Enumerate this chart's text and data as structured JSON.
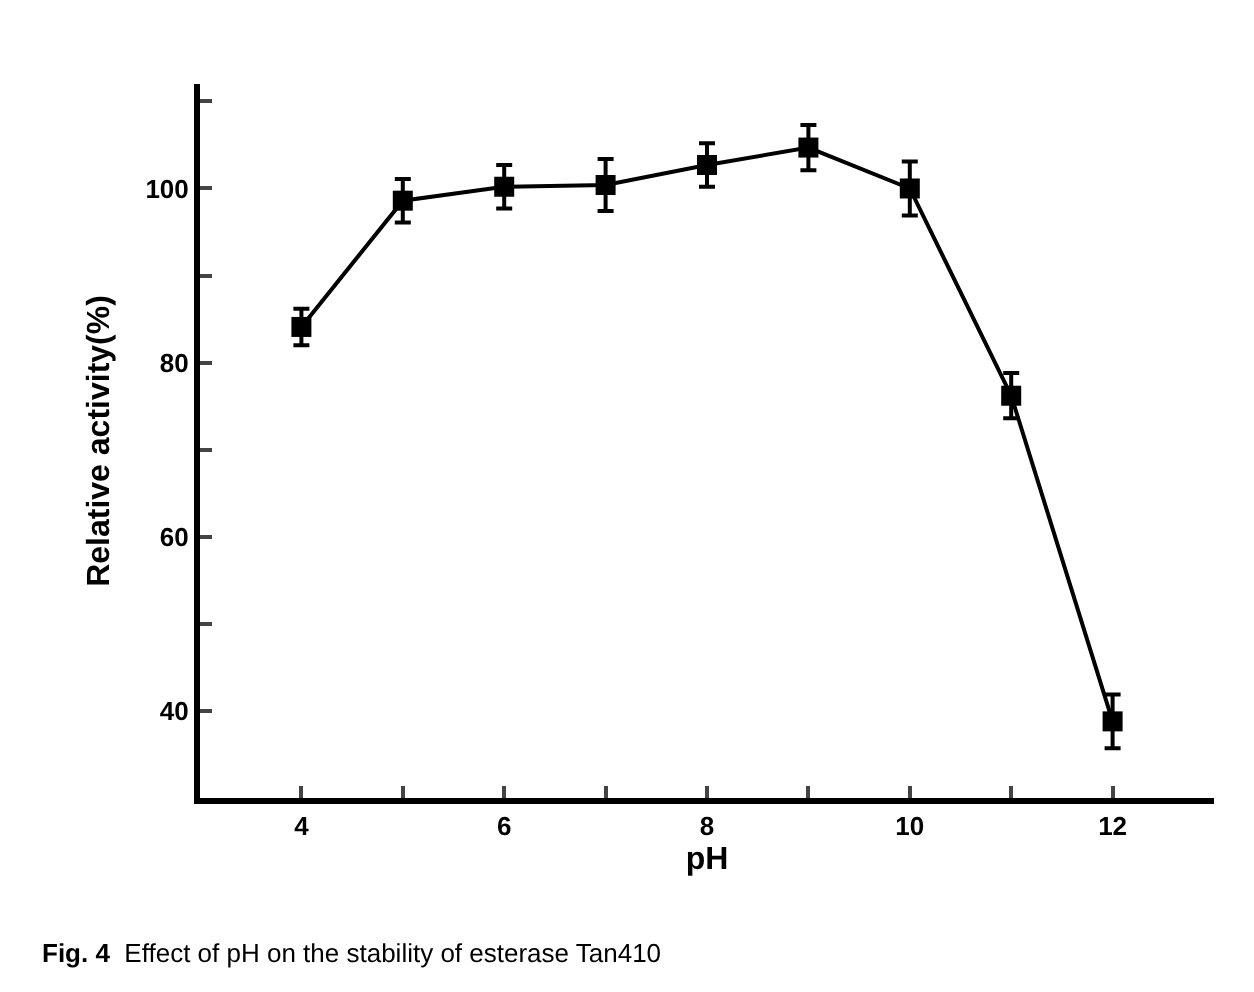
{
  "chart_data": {
    "type": "line",
    "xlabel": "pH",
    "ylabel": "Relative activity(%)",
    "annotations": [
      "Fig. 4  Effect of pH on the stability of esterase Tan410"
    ],
    "x": [
      4,
      5,
      6,
      7,
      8,
      9,
      10,
      11,
      12
    ],
    "series": [
      {
        "color": "#000000",
        "values": [
          84.1,
          98.6,
          100.2,
          100.4,
          102.7,
          104.7,
          100.0,
          76.2,
          38.8
        ],
        "errors": [
          2.1,
          2.5,
          2.5,
          3.0,
          2.5,
          2.6,
          3.1,
          2.6,
          3.1
        ]
      }
    ],
    "xlim": [
      3,
      13
    ],
    "xticks": [
      4,
      {
        "value": 5,
        "label": null
      },
      6,
      {
        "value": 7,
        "label": null
      },
      8,
      {
        "value": 9,
        "label": null
      },
      10,
      {
        "value": 11,
        "label": null
      },
      12
    ],
    "ylim": [
      30,
      112
    ],
    "yticks": [
      40,
      {
        "value": 50,
        "label": null
      },
      60,
      {
        "value": 70,
        "label": null
      },
      80,
      {
        "value": 90,
        "label": null
      },
      100,
      {
        "value": 110,
        "label": null
      }
    ],
    "marker": "square",
    "line_style": "solid"
  }
}
